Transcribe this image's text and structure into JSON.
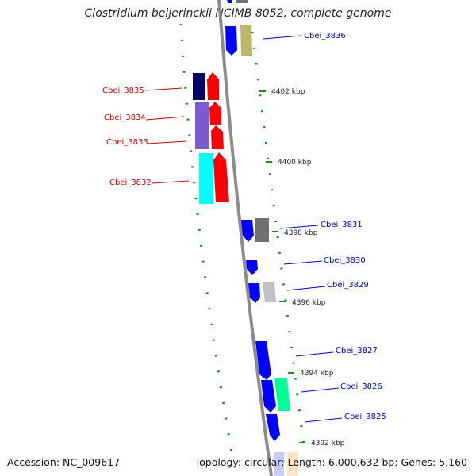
{
  "title": "Clostridium beijerinckii NCIMB 8052, complete genome",
  "accession": "Accession: NC_009617",
  "topology": "Topology: circular; Length: 6,000,632 bp; Genes: 5,160",
  "colors": {
    "left_label": "#cc0000",
    "right_label": "#0000cc",
    "tick": "#1f8a1f",
    "backbone": "#8c8c8c"
  },
  "ticks": [
    {
      "label": "4402 kbp"
    },
    {
      "label": "4400 kbp"
    },
    {
      "label": "4398 kbp"
    },
    {
      "label": "4396 kbp"
    },
    {
      "label": "4394 kbp"
    },
    {
      "label": "4392 kbp"
    }
  ],
  "genes_left": [
    {
      "label": "Cbei_3835",
      "color": "#000066"
    },
    {
      "label": "Cbei_3834",
      "color": "#7a5bd2"
    },
    {
      "label": "Cbei_3833",
      "color": "#6a4bc9"
    },
    {
      "label": "Cbei_3832",
      "color": "#00ffff"
    }
  ],
  "genes_right": [
    {
      "label": "Cbei_3836",
      "color": "#bdb76b"
    },
    {
      "label": "Cbei_3831",
      "color": "#707070"
    },
    {
      "label": "Cbei_3830",
      "color": "#0000ff"
    },
    {
      "label": "Cbei_3829",
      "color": "#c0c0c0"
    },
    {
      "label": "Cbei_3827",
      "color": "#0000ff"
    },
    {
      "label": "Cbei_3826",
      "color": "#00ff99"
    },
    {
      "label": "Cbei_3825",
      "color": "#0000ff"
    }
  ]
}
